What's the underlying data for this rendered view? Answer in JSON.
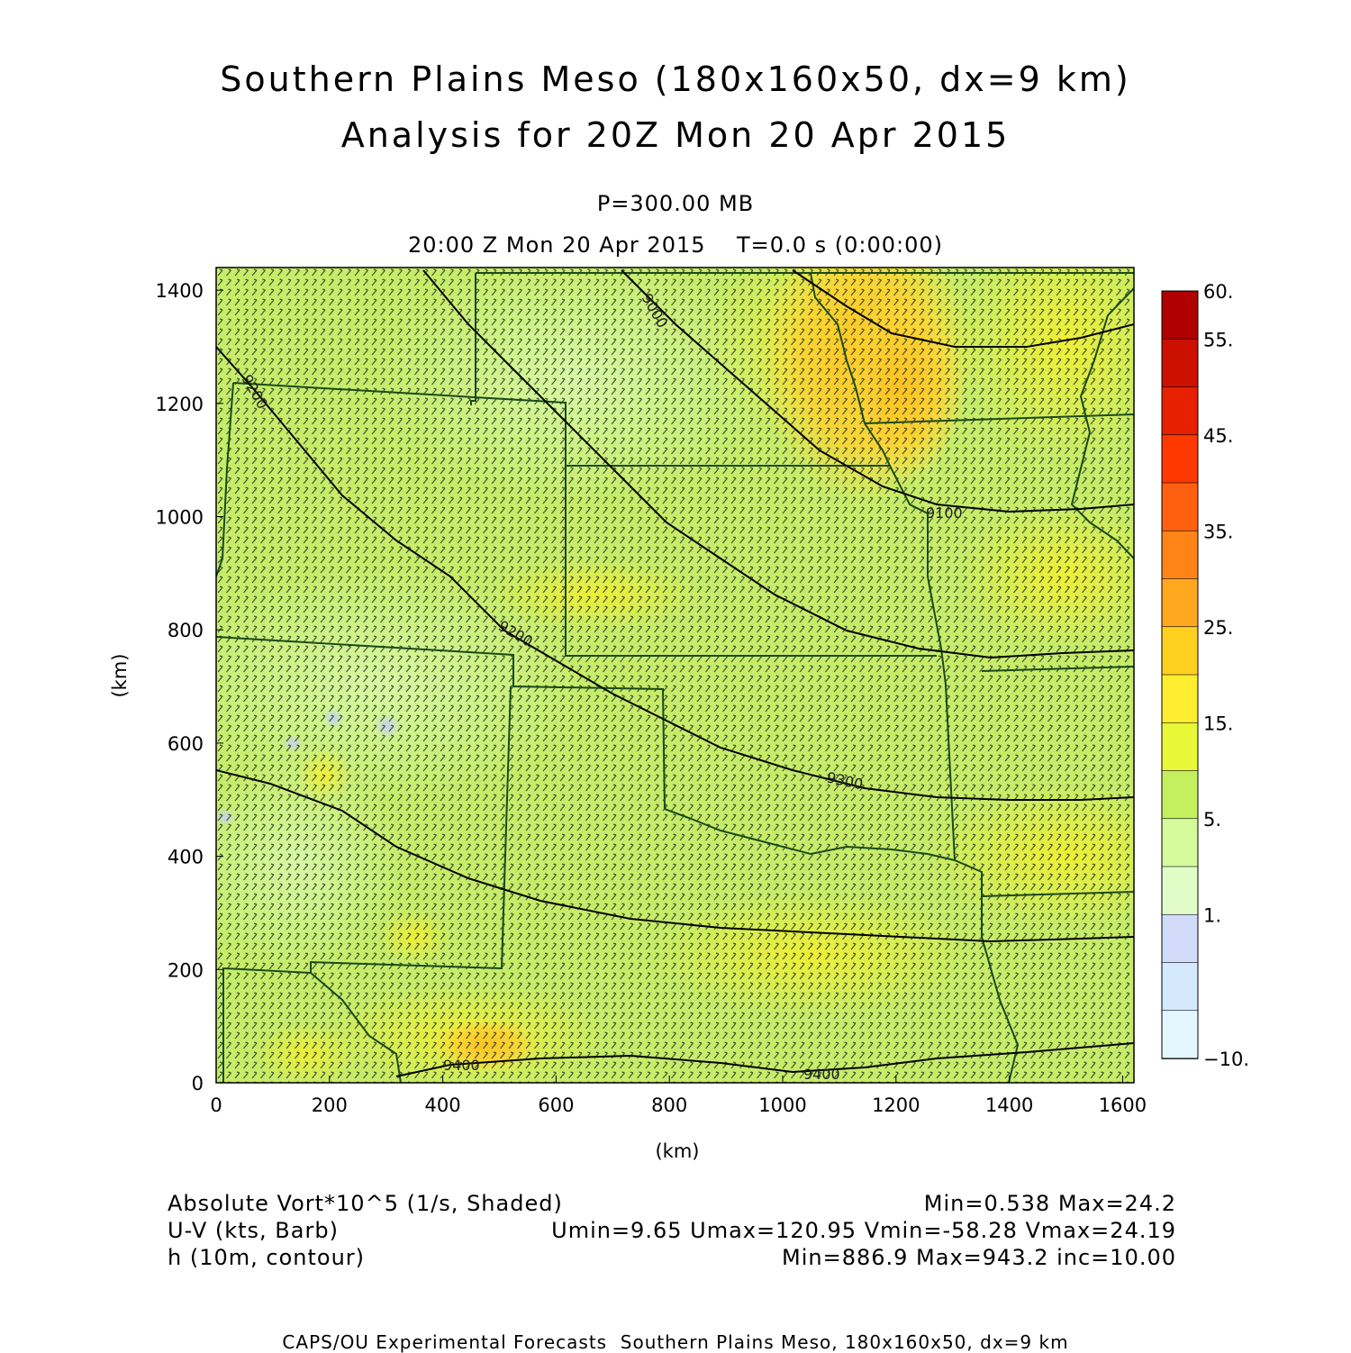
{
  "header": {
    "title_line1": "Southern Plains Meso (180x160x50, dx=9 km)",
    "title_line2": "Analysis for 20Z Mon 20 Apr 2015",
    "level": "P=300.00 MB",
    "time": "20:00 Z Mon 20 Apr 2015    T=0.0 s (0:00:00)"
  },
  "axes": {
    "xlabel": "(km)",
    "ylabel": "(km)",
    "xticks": [
      "0",
      "200",
      "400",
      "600",
      "800",
      "1000",
      "1200",
      "1400",
      "1600"
    ],
    "yticks": [
      "0",
      "200",
      "400",
      "600",
      "800",
      "1000",
      "1200",
      "1400"
    ],
    "xlim": [
      0,
      1620
    ],
    "ylim": [
      0,
      1440
    ]
  },
  "colorbar": {
    "labels": [
      "60.",
      "55.",
      "45.",
      "35.",
      "25.",
      "15.",
      "5.",
      "1.",
      "-10."
    ],
    "colors": [
      "#b00000",
      "#cc1000",
      "#e62000",
      "#ff3800",
      "#ff6010",
      "#ff8418",
      "#ffa820",
      "#ffd020",
      "#ffee30",
      "#e8f838",
      "#c4f060",
      "#d4fa9c",
      "#e2fcc8",
      "#d2dcfa",
      "#d4eafc",
      "#e4f6fe"
    ]
  },
  "contours": [
    {
      "label": "9000",
      "level": 9000
    },
    {
      "label": "9100",
      "level": 9100
    },
    {
      "label": "9200",
      "level": 9200
    },
    {
      "label": "9300",
      "level": 9300
    },
    {
      "label": "9400",
      "level": 9400
    }
  ],
  "footer": {
    "field1": "Absolute Vort*10^5 (1/s, Shaded)",
    "stats1": "Min=0.538 Max=24.2",
    "field2": "U-V (kts, Barb)",
    "stats2": "Umin=9.65 Umax=120.95 Vmin=-58.28 Vmax=24.19",
    "field3": "h (10m, contour)",
    "stats3": "Min=886.9 Max=943.2 inc=10.00",
    "credit": "CAPS/OU Experimental Forecasts  Southern Plains Meso, 180x160x50, dx=9 km"
  }
}
